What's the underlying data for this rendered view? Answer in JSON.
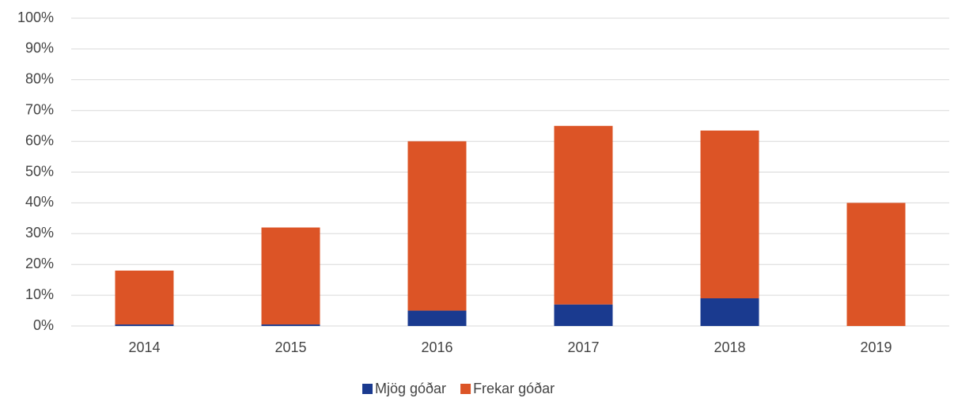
{
  "chart_data": {
    "type": "stacked_bar",
    "categories": [
      "2014",
      "2015",
      "2016",
      "2017",
      "2018",
      "2019"
    ],
    "series": [
      {
        "name": "Mjög góðar",
        "color": "#1a3a8f",
        "values": [
          0.5,
          0.5,
          5,
          7,
          9,
          0
        ]
      },
      {
        "name": "Frekar góðar",
        "color": "#dc5426",
        "values": [
          17.5,
          31.5,
          55,
          58,
          54.5,
          40
        ]
      }
    ],
    "ylim": [
      0,
      100
    ],
    "yticks": [
      {
        "value": 0,
        "label": "0%"
      },
      {
        "value": 10,
        "label": "10%"
      },
      {
        "value": 20,
        "label": "20%"
      },
      {
        "value": 30,
        "label": "30%"
      },
      {
        "value": 40,
        "label": "40%"
      },
      {
        "value": 50,
        "label": "50%"
      },
      {
        "value": 60,
        "label": "60%"
      },
      {
        "value": 70,
        "label": "70%"
      },
      {
        "value": 80,
        "label": "80%"
      },
      {
        "value": 90,
        "label": "90%"
      },
      {
        "value": 100,
        "label": "100%"
      }
    ],
    "grid": true,
    "legend": "bottom"
  }
}
